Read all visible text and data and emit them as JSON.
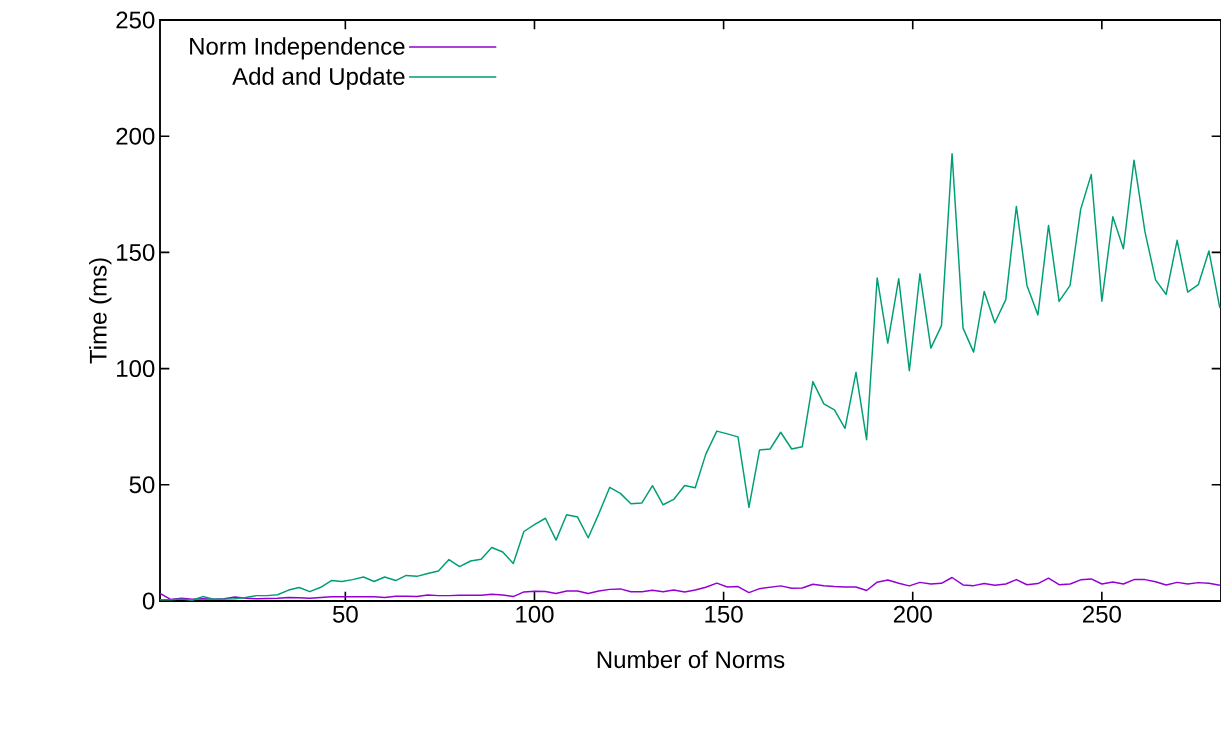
{
  "chart_data": {
    "type": "line",
    "xlabel": "Number of Norms",
    "ylabel": "Time (ms)",
    "xlim": [
      1,
      281.5
    ],
    "ylim": [
      0,
      250
    ],
    "xticks": [
      50,
      100,
      150,
      200,
      250
    ],
    "yticks": [
      0,
      50,
      100,
      150,
      200,
      250
    ],
    "legend": "top left",
    "marker": "none",
    "line_style": "solid",
    "x": [
      1.0,
      3.8,
      6.7,
      9.5,
      12.3,
      15.2,
      18.0,
      20.8,
      23.6,
      26.5,
      29.3,
      32.1,
      35.0,
      37.8,
      40.6,
      43.5,
      46.3,
      49.1,
      51.9,
      54.8,
      57.6,
      60.4,
      63.3,
      66.1,
      68.9,
      71.8,
      74.6,
      77.4,
      80.2,
      83.1,
      85.9,
      88.7,
      91.6,
      94.4,
      97.2,
      100.1,
      102.9,
      105.7,
      108.5,
      111.4,
      114.2,
      117.0,
      119.9,
      122.7,
      125.5,
      128.4,
      131.2,
      134.0,
      136.8,
      139.7,
      142.5,
      145.3,
      148.2,
      151.0,
      153.8,
      156.7,
      159.5,
      162.3,
      165.1,
      168.0,
      170.8,
      173.6,
      176.5,
      179.3,
      182.1,
      185.0,
      187.8,
      190.6,
      193.4,
      196.3,
      199.1,
      201.9,
      204.8,
      207.6,
      210.4,
      213.3,
      216.1,
      218.9,
      221.7,
      224.6,
      227.4,
      230.2,
      233.1,
      235.9,
      238.7,
      241.6,
      244.4,
      247.2,
      250.0,
      252.9,
      255.7,
      258.5,
      261.4,
      264.2,
      267.0,
      269.9,
      272.7,
      275.5,
      278.3,
      281.2
    ],
    "series": [
      {
        "name": "Norm Independence",
        "color": "#9400d3",
        "values": [
          3.3,
          0.7,
          1.2,
          0.8,
          1.0,
          0.8,
          1.0,
          1.7,
          1.2,
          1.0,
          1.1,
          1.2,
          1.5,
          1.4,
          1.2,
          1.5,
          1.8,
          1.8,
          1.8,
          1.8,
          1.8,
          1.5,
          2.0,
          2.0,
          1.9,
          2.6,
          2.3,
          2.3,
          2.5,
          2.5,
          2.5,
          2.9,
          2.6,
          1.9,
          3.9,
          4.2,
          4.1,
          3.2,
          4.3,
          4.3,
          3.2,
          4.3,
          5.0,
          5.2,
          4.0,
          4.0,
          4.6,
          4.0,
          4.7,
          3.9,
          4.7,
          5.9,
          7.7,
          6.0,
          6.2,
          3.6,
          5.3,
          5.9,
          6.5,
          5.5,
          5.6,
          7.2,
          6.6,
          6.2,
          6.0,
          6.0,
          4.5,
          8.1,
          9.0,
          7.6,
          6.5,
          8.0,
          7.3,
          7.6,
          10.1,
          6.9,
          6.6,
          7.5,
          6.8,
          7.3,
          9.2,
          7.0,
          7.5,
          9.8,
          7.0,
          7.3,
          9.1,
          9.5,
          7.3,
          8.2,
          7.3,
          9.2,
          9.2,
          8.3,
          6.9,
          8.0,
          7.3,
          7.9,
          7.6,
          6.8
        ]
      },
      {
        "name": "Add and Update",
        "color": "#009e73",
        "values": [
          0.5,
          0.5,
          0.8,
          0.3,
          1.9,
          0.8,
          0.8,
          1,
          1.5,
          2.3,
          2.3,
          2.7,
          4.7,
          5.8,
          4,
          5.9,
          8.8,
          8.4,
          9.2,
          10.3,
          8.4,
          10.3,
          8.8,
          11,
          10.6,
          11.8,
          12.9,
          17.8,
          14.8,
          17.2,
          18,
          23,
          21.1,
          16.1,
          29.9,
          33,
          35.6,
          26.2,
          37.1,
          36.1,
          27.2,
          37.5,
          48.9,
          46.3,
          41.8,
          42.2,
          49.6,
          41.4,
          43.7,
          49.7,
          48.7,
          63.2,
          73.1,
          71.9,
          70.6,
          40.3,
          65,
          65.4,
          72.6,
          65.4,
          66.4,
          94.4,
          84.8,
          82.2,
          74.3,
          98.4,
          69.4,
          139,
          111,
          138.7,
          99.1,
          140.8,
          108.8,
          118.5,
          192.5,
          117.4,
          107.1,
          133.2,
          119.7,
          129.7,
          169.8,
          135.8,
          123.1,
          161.6,
          128.9,
          135.8,
          168.5,
          183.5,
          129,
          165.3,
          151.6,
          189.7,
          158.8,
          138.2,
          131.9,
          155.2,
          132.9,
          136.1,
          150.6,
          126
        ]
      }
    ]
  }
}
